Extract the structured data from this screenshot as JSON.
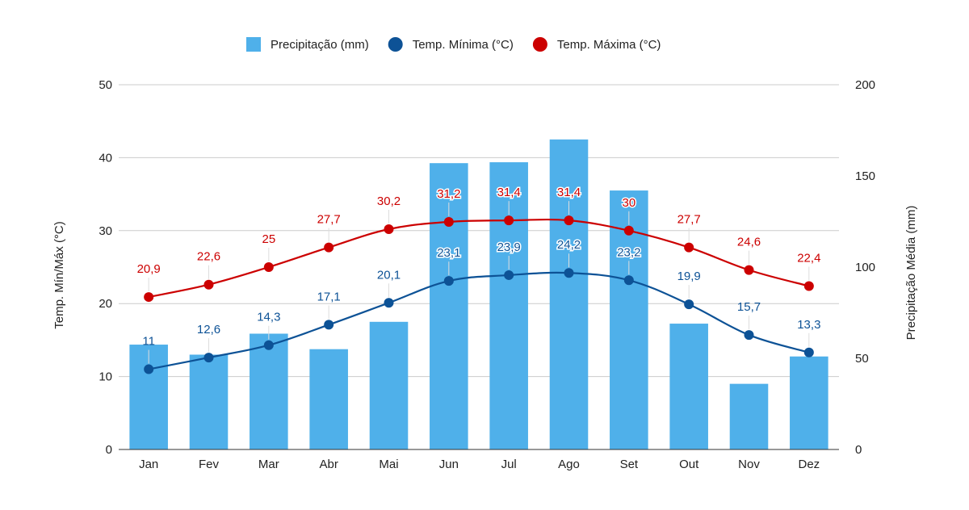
{
  "chart_data": {
    "type": "bar",
    "categories": [
      "Jan",
      "Fev",
      "Mar",
      "Abr",
      "Mai",
      "Jun",
      "Jul",
      "Ago",
      "Set",
      "Out",
      "Nov",
      "Dez"
    ],
    "series": [
      {
        "name": "Precipitação (mm)",
        "kind": "bar",
        "axis": "right",
        "color": "#4fb0ea",
        "values": [
          57.5,
          52,
          63.5,
          55,
          70,
          157,
          157.5,
          170,
          142,
          69,
          36,
          51
        ]
      },
      {
        "name": "Temp. Mínima (°C)",
        "kind": "line",
        "axis": "left",
        "color": "#0d5296",
        "values": [
          11,
          12.6,
          14.3,
          17.1,
          20.1,
          23.1,
          23.9,
          24.2,
          23.2,
          19.9,
          15.7,
          13.3
        ],
        "labels": [
          "11",
          "12,6",
          "14,3",
          "17,1",
          "20,1",
          "23,1",
          "23,9",
          "24,2",
          "23,2",
          "19,9",
          "15,7",
          "13,3"
        ]
      },
      {
        "name": "Temp. Máxima (°C)",
        "kind": "line",
        "axis": "left",
        "color": "#cc0000",
        "values": [
          20.9,
          22.6,
          25,
          27.7,
          30.2,
          31.2,
          31.4,
          31.4,
          30,
          27.7,
          24.6,
          22.4
        ],
        "labels": [
          "20,9",
          "22,6",
          "25",
          "27,7",
          "30,2",
          "31,2",
          "31,4",
          "31,4",
          "30",
          "27,7",
          "24,6",
          "22,4"
        ]
      }
    ],
    "ylabel": "Temp. Mín/Máx (°C)",
    "ylim": [
      0,
      50
    ],
    "yticks": [
      "0",
      "10",
      "20",
      "30",
      "40",
      "50"
    ],
    "y2label": "Precipitação Média (mm)",
    "y2lim": [
      0,
      200
    ],
    "y2ticks": [
      "0",
      "50",
      "100",
      "150",
      "200"
    ],
    "grid": true,
    "legend_position": "top-center",
    "gridline_color": "#cccccc"
  }
}
